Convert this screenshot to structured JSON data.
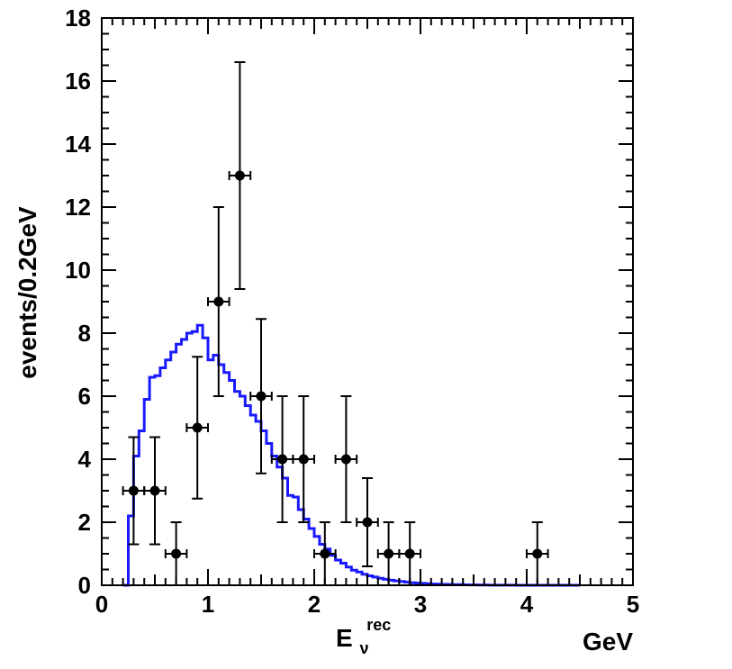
{
  "chart_data": {
    "type": "scatter",
    "ylabel": "events/0.2GeV",
    "xlabel_main": "E",
    "xlabel_subscript": "ν",
    "xlabel_superscript": "rec",
    "xunit": "GeV",
    "xlim": [
      0,
      5
    ],
    "ylim": [
      0,
      18
    ],
    "xticks": [
      0,
      1,
      2,
      3,
      4,
      5
    ],
    "yticks": [
      0,
      2,
      4,
      6,
      8,
      10,
      12,
      14,
      16,
      18
    ],
    "grid": false,
    "series": [
      {
        "kind": "data-points-with-errors",
        "color": "#000000",
        "x": [
          0.3,
          0.5,
          0.7,
          0.9,
          1.1,
          1.3,
          1.5,
          1.7,
          1.9,
          2.1,
          2.3,
          2.5,
          2.7,
          2.9,
          4.1
        ],
        "y": [
          3,
          3,
          1,
          5,
          9,
          13,
          6,
          4,
          4,
          1,
          4,
          2,
          1,
          1,
          1
        ],
        "xerr": 0.1,
        "yerr_low": [
          1.7,
          1.7,
          1.0,
          2.25,
          3.0,
          3.6,
          2.45,
          2.0,
          2.0,
          1.0,
          2.0,
          1.4,
          1.0,
          1.0,
          1.0
        ],
        "yerr_high": [
          1.7,
          1.7,
          1.0,
          2.25,
          3.0,
          3.6,
          2.45,
          2.0,
          2.0,
          1.0,
          2.0,
          1.4,
          1.0,
          1.0,
          1.0
        ]
      },
      {
        "kind": "step-histogram",
        "color": "#1a1aff",
        "bin_width": 0.05,
        "x_start": 0.2,
        "values": [
          0.0,
          2.2,
          4.1,
          4.9,
          5.9,
          6.6,
          6.65,
          6.9,
          7.15,
          7.4,
          7.65,
          7.8,
          8.0,
          8.05,
          8.25,
          7.85,
          7.15,
          7.3,
          7.0,
          6.75,
          6.5,
          6.15,
          6.0,
          5.7,
          5.4,
          5.2,
          4.9,
          4.5,
          4.1,
          3.75,
          3.4,
          2.85,
          2.8,
          2.4,
          2.1,
          1.8,
          1.55,
          1.3,
          1.15,
          0.95,
          0.8,
          0.7,
          0.58,
          0.48,
          0.42,
          0.35,
          0.3,
          0.26,
          0.22,
          0.19,
          0.16,
          0.14,
          0.12,
          0.1,
          0.08,
          0.07,
          0.06,
          0.05,
          0.04,
          0.035,
          0.03,
          0.025,
          0.02,
          0.02,
          0.015,
          0.012,
          0.01,
          0.008,
          0.006,
          0.005,
          0.004,
          0.003,
          0.002,
          0.002,
          0.001,
          0.001,
          0.001,
          0.0,
          0.0,
          0.0,
          0.0,
          0.0,
          0.0,
          0.0,
          0.0,
          0.0
        ]
      }
    ]
  }
}
